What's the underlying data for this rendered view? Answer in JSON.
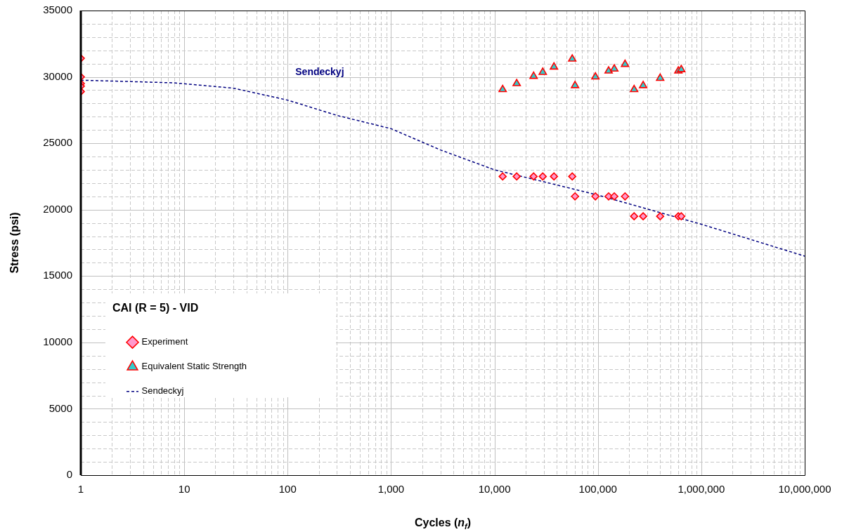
{
  "chart_data": {
    "type": "scatter",
    "xlabel": "Cycles (n$_{f}$)",
    "ylabel": "Stress (psi)",
    "legend_title": "CAI (R = 5) - VID",
    "legend": "bottom left",
    "grid": true,
    "log": "x",
    "xlim": [
      1,
      10000000
    ],
    "xticks": [
      1,
      10,
      100,
      {
        "value": 1000,
        "label": "1,000"
      },
      {
        "value": 10000,
        "label": "10,000"
      },
      {
        "value": 100000,
        "label": "100,000"
      },
      {
        "value": 1000000,
        "label": "1,000,000"
      },
      {
        "value": 10000000,
        "label": "10,000,000"
      }
    ],
    "ylim": [
      0,
      35000
    ],
    "yticks": [
      0,
      5000,
      10000,
      15000,
      20000,
      25000,
      30000,
      35000
    ],
    "annotations": [
      "Sendeckyj"
    ],
    "series": [
      {
        "name": "Experiment",
        "marker": "diamond",
        "color": "#ff99cc",
        "x": [
          1,
          1,
          1,
          1,
          1,
          12000,
          16400,
          23900,
          29300,
          37600,
          56500,
          60100,
          94600,
          127000,
          144000,
          183000,
          224000,
          274000,
          400000,
          600000,
          640000
        ],
        "values": [
          31400,
          30000,
          29500,
          29300,
          28900,
          22500,
          22500,
          22500,
          22500,
          22500,
          22500,
          21000,
          21000,
          21000,
          21000,
          21000,
          19500,
          19500,
          19500,
          19500,
          19500
        ]
      },
      {
        "name": "Equivalent Static Strength",
        "marker": "triangle",
        "color": "#33cccc",
        "x": [
          12000,
          16400,
          23900,
          29300,
          37600,
          56500,
          60100,
          94600,
          127000,
          144000,
          183000,
          224000,
          274000,
          400000,
          600000,
          640000
        ],
        "values": [
          29050,
          29500,
          30050,
          30350,
          30750,
          31350,
          29350,
          30000,
          30450,
          30600,
          30950,
          29050,
          29350,
          29900,
          30450,
          30550
        ]
      },
      {
        "name": "Sendeckyj",
        "type": "line",
        "marker": "none",
        "line_style": "dashed",
        "color": "#000080",
        "x": [
          1,
          3,
          8,
          30,
          100,
          300,
          1000,
          3000,
          10000,
          30000,
          100000,
          1000000,
          10000000
        ],
        "values": [
          29750,
          29650,
          29550,
          29150,
          28250,
          27100,
          26100,
          24500,
          23000,
          22100,
          21100,
          18900,
          16500
        ]
      }
    ]
  }
}
